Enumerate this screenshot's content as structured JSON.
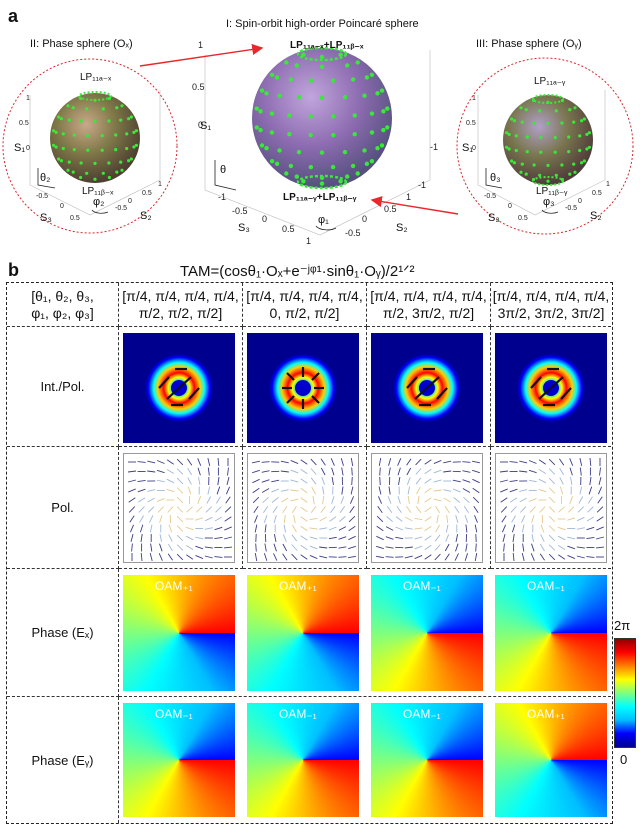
{
  "panel_a": {
    "label": "a",
    "title_center": "I: Spin-orbit high-order Poincaré sphere",
    "title_left": "II: Phase sphere (Oₓ)",
    "title_right": "III: Phase sphere (Oᵧ)",
    "left": {
      "top": "LP₁₁ₐ₋ₓ",
      "bottom": "LP₁₁ᵦ₋ₓ",
      "s1": "S₁",
      "s2": "S₂",
      "s3": "S₃",
      "theta": "θ₂",
      "phi": "φ₂"
    },
    "center": {
      "top": "LP₁₁ₐ₋ₓ+LP₁₁ᵦ₋ₓ",
      "bottom": "LP₁₁ₐ₋ᵧ+LP₁₁ᵦ₋ᵧ",
      "s1": "S₁",
      "s2": "S₂",
      "s3": "S₃",
      "theta": "θ",
      "phi": "φ₁"
    },
    "right": {
      "top": "LP₁₁ₐ₋ᵧ",
      "bottom": "LP₁₁ᵦ₋ᵧ",
      "s1": "S₁",
      "s2": "S₂",
      "s3": "S₃",
      "theta": "θ₃",
      "phi": "φ₃"
    }
  },
  "panel_b": {
    "label": "b",
    "formula": "TAM=(cosθ₁·Oₓ+e⁻ʲᵠ¹·sinθ₁·Oᵧ)/2¹ᐟ²",
    "header_param": [
      "[θ₁, θ₂, θ₃,",
      "φ₁, φ₂, φ₃]"
    ],
    "columns": [
      [
        "[π/4, π/4, π/4, π/4,",
        "π/2, π/2, π/2]"
      ],
      [
        "[π/4, π/4, π/4, π/4,",
        "0, π/2, π/2]"
      ],
      [
        "[π/4, π/4, π/4, π/4,",
        "π/2, 3π/2, π/2]"
      ],
      [
        "[π/4, π/4, π/4, π/4,",
        "3π/2, 3π/2, 3π/2]"
      ]
    ],
    "rows": [
      "Int./Pol.",
      "Pol.",
      "Phase (Eₓ)",
      "Phase (Eᵧ)"
    ],
    "oam_ex": [
      "OAM₊₁",
      "OAM₊₁",
      "OAM₋₁",
      "OAM₋₁"
    ],
    "oam_ey": [
      "OAM₋₁",
      "OAM₋₁",
      "OAM₋₁",
      "OAM₊₁"
    ],
    "colorbar": {
      "top": "2π",
      "bottom": "0"
    }
  }
}
